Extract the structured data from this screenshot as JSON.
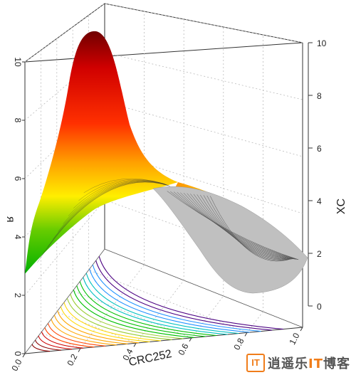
{
  "chart_data": {
    "type": "3d-ternary-surface",
    "title": "",
    "axes": {
      "left_vertical": {
        "label": "ᴙ",
        "ticks": [
          "0",
          "2",
          "4",
          "6",
          "8",
          "10"
        ]
      },
      "right_vertical": {
        "label": "XC",
        "ticks": [
          "0",
          "2",
          "4",
          "6",
          "8",
          "10"
        ]
      },
      "base": {
        "label": "CRC252",
        "ticks": [
          "0.0",
          "0.2",
          "0.4",
          "0.6",
          "0.8",
          "1.0"
        ]
      }
    },
    "zlim": [
      0,
      10
    ],
    "grid": true,
    "colormap": [
      "#008000",
      "#66cc00",
      "#ffff00",
      "#ffa500",
      "#ff3300",
      "#cc0000",
      "#660000"
    ],
    "missing_region_color": "#c0c0c0",
    "contour_colors": [
      "#8b0000",
      "#cc0000",
      "#ff4500",
      "#ffa500",
      "#ffd700",
      "#9acd32",
      "#00c000",
      "#00c0c0",
      "#1e90ff",
      "#4b0082"
    ]
  },
  "watermark": {
    "logo": "IT",
    "text_a": "逍遥乐",
    "text_it": "IT",
    "text_b": "博客"
  }
}
